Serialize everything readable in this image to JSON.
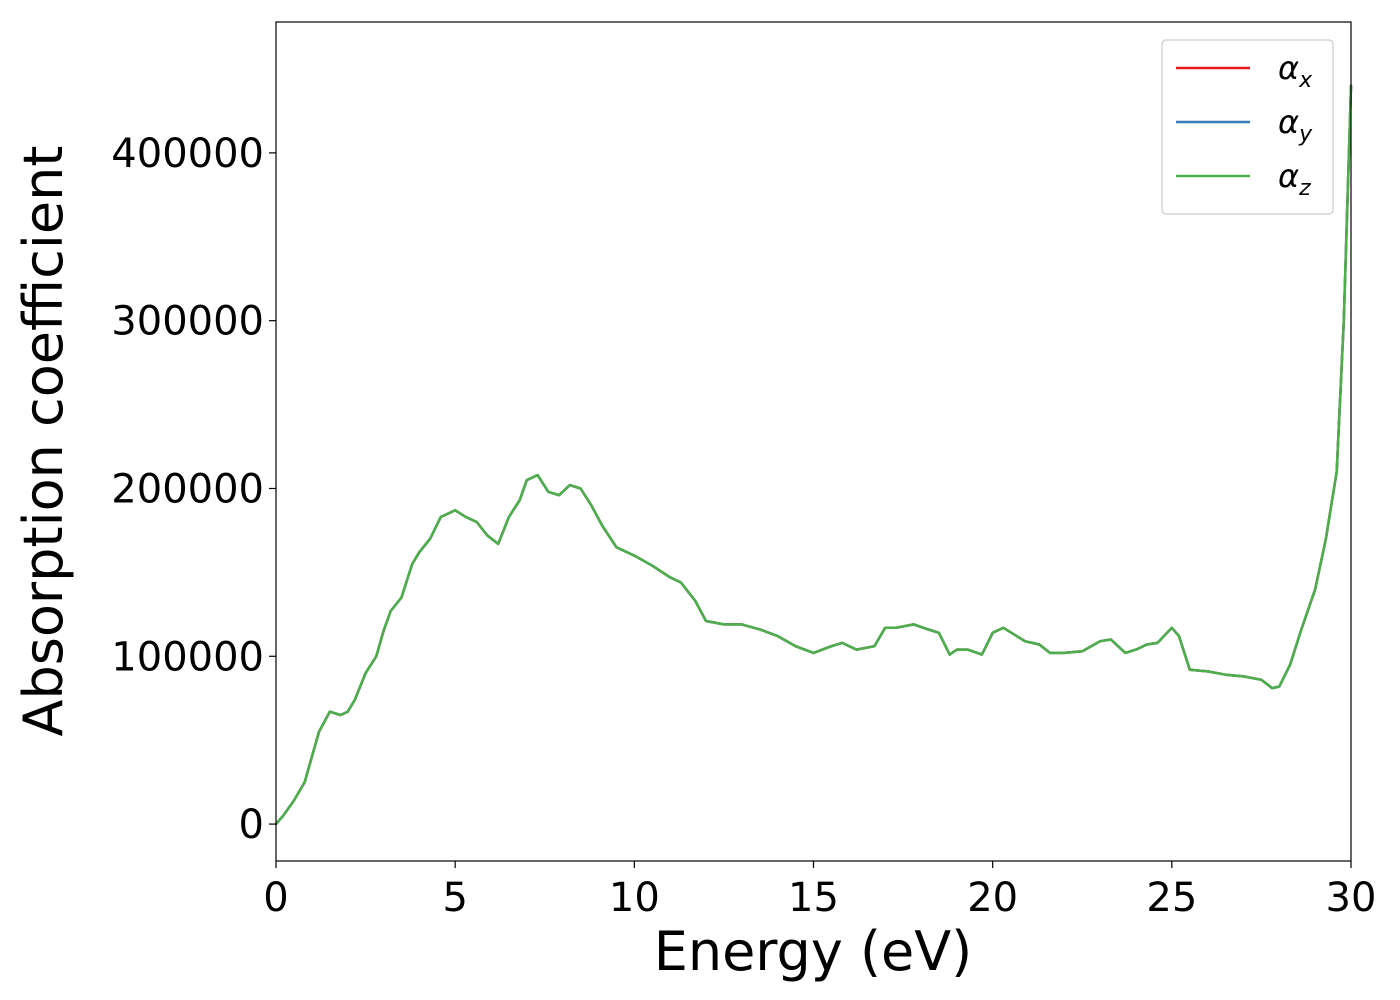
{
  "chart_data": {
    "type": "line",
    "title": "",
    "xlabel": "Energy (eV)",
    "ylabel": "Absorption coefficient",
    "xlim": [
      0,
      30
    ],
    "ylim": [
      -22000,
      478000
    ],
    "xticks": [
      0,
      5,
      10,
      15,
      20,
      25,
      30
    ],
    "xtick_labels": [
      "0",
      "5",
      "10",
      "15",
      "20",
      "25",
      "30"
    ],
    "yticks": [
      0,
      100000,
      200000,
      300000,
      400000
    ],
    "ytick_labels": [
      "0",
      "100000",
      "200000",
      "300000",
      "400000"
    ],
    "grid": false,
    "legend_position": "top-right",
    "series": [
      {
        "name": "α_x",
        "legend_base": "α",
        "legend_sub": "x",
        "color": "#e41a1c",
        "x": [
          0,
          0.2,
          0.5,
          0.8,
          1.0,
          1.2,
          1.5,
          1.8,
          2.0,
          2.2,
          2.5,
          2.8,
          3.0,
          3.2,
          3.5,
          3.8,
          4.0,
          4.3,
          4.6,
          5.0,
          5.3,
          5.6,
          5.9,
          6.2,
          6.5,
          6.8,
          7.0,
          7.3,
          7.6,
          7.9,
          8.2,
          8.5,
          8.8,
          9.1,
          9.5,
          10.0,
          10.5,
          11.0,
          11.3,
          11.7,
          12.0,
          12.5,
          13.0,
          13.5,
          14.0,
          14.5,
          15.0,
          15.5,
          15.8,
          16.2,
          16.7,
          17.0,
          17.3,
          17.8,
          18.2,
          18.5,
          18.8,
          19.0,
          19.3,
          19.7,
          20.0,
          20.3,
          20.6,
          20.9,
          21.3,
          21.6,
          22.0,
          22.5,
          23.0,
          23.3,
          23.7,
          24.0,
          24.3,
          24.6,
          25.0,
          25.2,
          25.5,
          26.0,
          26.5,
          27.0,
          27.5,
          27.8,
          28.0,
          28.3,
          28.6,
          29.0,
          29.3,
          29.6,
          29.8,
          30.0
        ],
        "y": [
          0,
          5000,
          14000,
          25000,
          40000,
          55000,
          67000,
          65000,
          67000,
          74000,
          90000,
          100000,
          115000,
          127000,
          135000,
          155000,
          162000,
          170000,
          183000,
          187000,
          183000,
          180000,
          172000,
          167000,
          183000,
          193000,
          205000,
          208000,
          198000,
          196000,
          202000,
          200000,
          190000,
          178000,
          165000,
          160000,
          154000,
          147000,
          144000,
          133000,
          121000,
          119000,
          119000,
          116000,
          112000,
          106000,
          102000,
          106000,
          108000,
          104000,
          106000,
          117000,
          117000,
          119000,
          116000,
          114000,
          101000,
          104000,
          104000,
          101000,
          114000,
          117000,
          113000,
          109000,
          107000,
          102000,
          102000,
          103000,
          109000,
          110000,
          102000,
          104000,
          107000,
          108000,
          117000,
          112000,
          92000,
          91000,
          89000,
          88000,
          86000,
          81000,
          82000,
          95000,
          115000,
          140000,
          170000,
          210000,
          300000,
          440000
        ]
      },
      {
        "name": "α_y",
        "legend_base": "α",
        "legend_sub": "y",
        "color": "#377eb8",
        "x": [
          0,
          0.2,
          0.5,
          0.8,
          1.0,
          1.2,
          1.5,
          1.8,
          2.0,
          2.2,
          2.5,
          2.8,
          3.0,
          3.2,
          3.5,
          3.8,
          4.0,
          4.3,
          4.6,
          5.0,
          5.3,
          5.6,
          5.9,
          6.2,
          6.5,
          6.8,
          7.0,
          7.3,
          7.6,
          7.9,
          8.2,
          8.5,
          8.8,
          9.1,
          9.5,
          10.0,
          10.5,
          11.0,
          11.3,
          11.7,
          12.0,
          12.5,
          13.0,
          13.5,
          14.0,
          14.5,
          15.0,
          15.5,
          15.8,
          16.2,
          16.7,
          17.0,
          17.3,
          17.8,
          18.2,
          18.5,
          18.8,
          19.0,
          19.3,
          19.7,
          20.0,
          20.3,
          20.6,
          20.9,
          21.3,
          21.6,
          22.0,
          22.5,
          23.0,
          23.3,
          23.7,
          24.0,
          24.3,
          24.6,
          25.0,
          25.2,
          25.5,
          26.0,
          26.5,
          27.0,
          27.5,
          27.8,
          28.0,
          28.3,
          28.6,
          29.0,
          29.3,
          29.6,
          29.8,
          30.0
        ],
        "y": [
          0,
          5000,
          14000,
          25000,
          40000,
          55000,
          67000,
          65000,
          67000,
          74000,
          90000,
          100000,
          115000,
          127000,
          135000,
          155000,
          162000,
          170000,
          183000,
          187000,
          183000,
          180000,
          172000,
          167000,
          183000,
          193000,
          205000,
          208000,
          198000,
          196000,
          202000,
          200000,
          190000,
          178000,
          165000,
          160000,
          154000,
          147000,
          144000,
          133000,
          121000,
          119000,
          119000,
          116000,
          112000,
          106000,
          102000,
          106000,
          108000,
          104000,
          106000,
          117000,
          117000,
          119000,
          116000,
          114000,
          101000,
          104000,
          104000,
          101000,
          114000,
          117000,
          113000,
          109000,
          107000,
          102000,
          102000,
          103000,
          109000,
          110000,
          102000,
          104000,
          107000,
          108000,
          117000,
          112000,
          92000,
          91000,
          89000,
          88000,
          86000,
          81000,
          82000,
          95000,
          115000,
          140000,
          170000,
          210000,
          300000,
          440000
        ]
      },
      {
        "name": "α_z",
        "legend_base": "α",
        "legend_sub": "z",
        "color": "#4daf4a",
        "x": [
          0,
          0.2,
          0.5,
          0.8,
          1.0,
          1.2,
          1.5,
          1.8,
          2.0,
          2.2,
          2.5,
          2.8,
          3.0,
          3.2,
          3.5,
          3.8,
          4.0,
          4.3,
          4.6,
          5.0,
          5.3,
          5.6,
          5.9,
          6.2,
          6.5,
          6.8,
          7.0,
          7.3,
          7.6,
          7.9,
          8.2,
          8.5,
          8.8,
          9.1,
          9.5,
          10.0,
          10.5,
          11.0,
          11.3,
          11.7,
          12.0,
          12.5,
          13.0,
          13.5,
          14.0,
          14.5,
          15.0,
          15.5,
          15.8,
          16.2,
          16.7,
          17.0,
          17.3,
          17.8,
          18.2,
          18.5,
          18.8,
          19.0,
          19.3,
          19.7,
          20.0,
          20.3,
          20.6,
          20.9,
          21.3,
          21.6,
          22.0,
          22.5,
          23.0,
          23.3,
          23.7,
          24.0,
          24.3,
          24.6,
          25.0,
          25.2,
          25.5,
          26.0,
          26.5,
          27.0,
          27.5,
          27.8,
          28.0,
          28.3,
          28.6,
          29.0,
          29.3,
          29.6,
          29.8,
          30.0
        ],
        "y": [
          0,
          5000,
          14000,
          25000,
          40000,
          55000,
          67000,
          65000,
          67000,
          74000,
          90000,
          100000,
          115000,
          127000,
          135000,
          155000,
          162000,
          170000,
          183000,
          187000,
          183000,
          180000,
          172000,
          167000,
          183000,
          193000,
          205000,
          208000,
          198000,
          196000,
          202000,
          200000,
          190000,
          178000,
          165000,
          160000,
          154000,
          147000,
          144000,
          133000,
          121000,
          119000,
          119000,
          116000,
          112000,
          106000,
          102000,
          106000,
          108000,
          104000,
          106000,
          117000,
          117000,
          119000,
          116000,
          114000,
          101000,
          104000,
          104000,
          101000,
          114000,
          117000,
          113000,
          109000,
          107000,
          102000,
          102000,
          103000,
          109000,
          110000,
          102000,
          104000,
          107000,
          108000,
          117000,
          112000,
          92000,
          91000,
          89000,
          88000,
          86000,
          81000,
          82000,
          95000,
          115000,
          140000,
          170000,
          210000,
          300000,
          440000
        ]
      }
    ]
  }
}
